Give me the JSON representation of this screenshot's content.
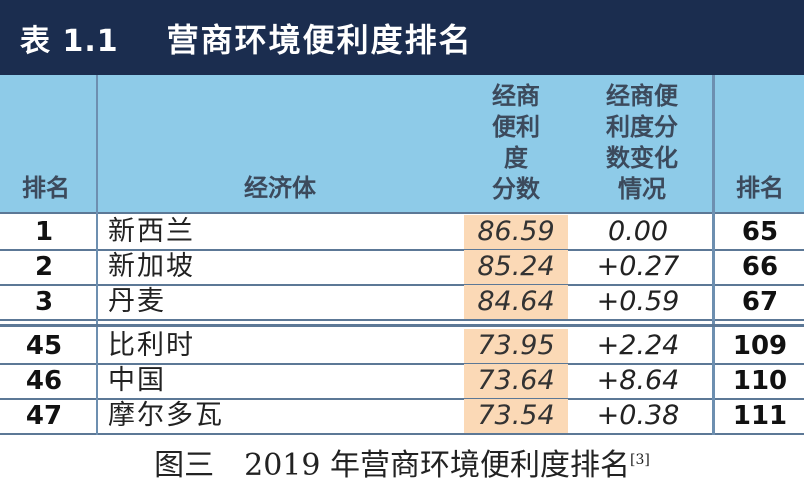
{
  "title": {
    "number": "表 1.1",
    "text": "营商环境便利度排名"
  },
  "header": {
    "rank": "排名",
    "economy": "经济体",
    "score_lines": [
      "经商",
      "便利",
      "度",
      "分数"
    ],
    "change_lines": [
      "经商便",
      "利度分",
      "数变化",
      "情况"
    ],
    "rank2": "排名"
  },
  "rows": [
    {
      "rank": "1",
      "economy": "新西兰",
      "score": "86.59",
      "change": "0.00",
      "rank2": "65"
    },
    {
      "rank": "2",
      "economy": "新加坡",
      "score": "85.24",
      "change": "+0.27",
      "rank2": "66"
    },
    {
      "rank": "3",
      "economy": "丹麦",
      "score": "84.64",
      "change": "+0.59",
      "rank2": "67"
    },
    {
      "rank": "45",
      "economy": "比利时",
      "score": "73.95",
      "change": "+2.24",
      "rank2": "109"
    },
    {
      "rank": "46",
      "economy": "中国",
      "score": "73.64",
      "change": "+8.64",
      "rank2": "110"
    },
    {
      "rank": "47",
      "economy": "摩尔多瓦",
      "score": "73.54",
      "change": "+0.38",
      "rank2": "111"
    }
  ],
  "caption": {
    "text": "图三　2019 年营商环境便利度排名",
    "ref": "[3]"
  }
}
